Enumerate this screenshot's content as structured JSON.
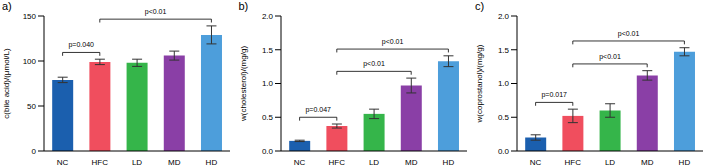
{
  "chart_data": [
    {
      "type": "bar",
      "title": "a)",
      "y_label": "c(bile acid)/(μmol/L)",
      "categories": [
        "NC",
        "HFC",
        "LD",
        "MD",
        "HD"
      ],
      "values": [
        79,
        99,
        98,
        106,
        129
      ],
      "errors": [
        3,
        3,
        4,
        5,
        10
      ],
      "colors": [
        "#1b5fae",
        "#f04e5e",
        "#35b54a",
        "#8a3fa6",
        "#4d9edb"
      ],
      "ylim": [
        0,
        150
      ],
      "yticks": [
        0,
        50,
        100,
        150
      ],
      "annotations": [
        {
          "from": "NC",
          "to": "HFC",
          "label": "p=0.040"
        },
        {
          "from": "HFC",
          "to": "HD",
          "label": "p<0.01"
        }
      ]
    },
    {
      "type": "bar",
      "title": "b)",
      "y_label": "w(cholesterol)/(mg/g)",
      "categories": [
        "NC",
        "HFC",
        "LD",
        "MD",
        "HD"
      ],
      "values": [
        0.15,
        0.37,
        0.55,
        0.97,
        1.33
      ],
      "errors": [
        0.01,
        0.03,
        0.07,
        0.11,
        0.08
      ],
      "colors": [
        "#1b5fae",
        "#f04e5e",
        "#35b54a",
        "#8a3fa6",
        "#4d9edb"
      ],
      "ylim": [
        0,
        2.0
      ],
      "yticks": [
        {
          "value": 0,
          "label": "0.0"
        },
        0.5,
        {
          "value": 1,
          "label": "1.0"
        },
        1.5,
        {
          "value": 2,
          "label": "2.0"
        }
      ],
      "annotations": [
        {
          "from": "NC",
          "to": "HFC",
          "label": "p=0.047"
        },
        {
          "from": "HFC",
          "to": "MD",
          "label": "p<0.01"
        },
        {
          "from": "HFC",
          "to": "HD",
          "label": "p<0.01"
        }
      ]
    },
    {
      "type": "bar",
      "title": "c)",
      "y_label": "w(coprostanol)/(mg/g)",
      "categories": [
        "NC",
        "HFC",
        "LD",
        "MD",
        "HD"
      ],
      "values": [
        0.2,
        0.52,
        0.6,
        1.12,
        1.47
      ],
      "errors": [
        0.04,
        0.1,
        0.1,
        0.07,
        0.06
      ],
      "colors": [
        "#1b5fae",
        "#f04e5e",
        "#35b54a",
        "#8a3fa6",
        "#4d9edb"
      ],
      "ylim": [
        0,
        2.0
      ],
      "yticks": [
        {
          "value": 0,
          "label": "0.0"
        },
        0.5,
        {
          "value": 1,
          "label": "1.0"
        },
        1.5,
        {
          "value": 2,
          "label": "2.0"
        }
      ],
      "annotations": [
        {
          "from": "NC",
          "to": "HFC",
          "label": "p=0.017"
        },
        {
          "from": "HFC",
          "to": "MD",
          "label": "p<0.01"
        },
        {
          "from": "HFC",
          "to": "HD",
          "label": "p<0.01"
        }
      ]
    }
  ]
}
